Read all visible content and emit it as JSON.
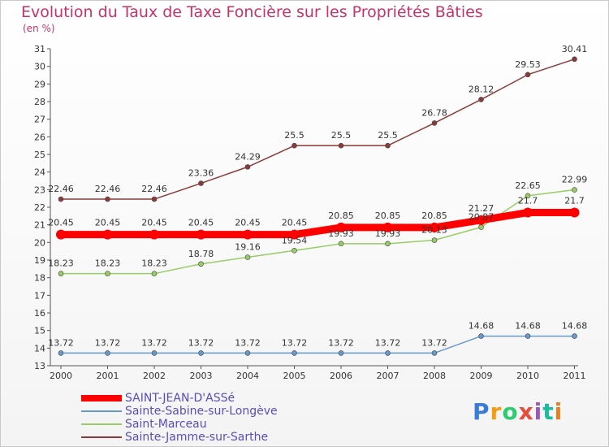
{
  "header": {
    "title": "Evolution du Taux de Taxe Foncière sur les Propriétés Bâties",
    "unit": "(en %)"
  },
  "logo": {
    "text": "Proxiti"
  },
  "chart_data": {
    "type": "line",
    "title": "Evolution du Taux de Taxe Foncière sur les Propriétés Bâties",
    "ylabel": "(en %)",
    "xlabel": "",
    "ylim": [
      13,
      31
    ],
    "yticks": [
      "13",
      "14",
      "15",
      "16",
      "17",
      "18",
      "19",
      "20",
      "21",
      "22",
      "23",
      "24",
      "25",
      "26",
      "27",
      "28",
      "29",
      "30",
      "31"
    ],
    "categories": [
      "2000",
      "2001",
      "2002",
      "2003",
      "2004",
      "2005",
      "2006",
      "2007",
      "2008",
      "2009",
      "2010",
      "2011"
    ],
    "grid": false,
    "legend": "bottom-left",
    "series": [
      {
        "name": "SAINT-JEAN-D'ASSé",
        "color": "#ff0000",
        "values": [
          20.45,
          20.45,
          20.45,
          20.45,
          20.45,
          20.45,
          20.85,
          20.85,
          20.85,
          21.27,
          21.7,
          21.7
        ],
        "labels": [
          "20.45",
          "20.45",
          "20.45",
          "20.45",
          "20.45",
          "20.45",
          "20.85",
          "20.85",
          "20.85",
          "21.27",
          "21.7",
          "21.7"
        ]
      },
      {
        "name": "Sainte-Sabine-sur-Longève",
        "color": "#6699cc",
        "values": [
          13.72,
          13.72,
          13.72,
          13.72,
          13.72,
          13.72,
          13.72,
          13.72,
          13.72,
          14.68,
          14.68,
          14.68
        ],
        "labels": [
          "13.72",
          "13.72",
          "13.72",
          "13.72",
          "13.72",
          "13.72",
          "13.72",
          "13.72",
          "13.72",
          "14.68",
          "14.68",
          "14.68"
        ]
      },
      {
        "name": "Saint-Marceau",
        "color": "#99cc66",
        "values": [
          18.23,
          18.23,
          18.23,
          18.78,
          19.16,
          19.54,
          19.93,
          19.93,
          20.13,
          20.87,
          22.65,
          22.99
        ],
        "labels": [
          "18.23",
          "18.23",
          "18.23",
          "18.78",
          "19.16",
          "19.54",
          "19.93",
          "19.93",
          "20.13",
          "20.87",
          "22.65",
          "22.99"
        ]
      },
      {
        "name": "Sainte-Jamme-sur-Sarthe",
        "color": "#8b3a3a",
        "values": [
          22.46,
          22.46,
          22.46,
          23.36,
          24.29,
          25.5,
          25.5,
          25.5,
          26.78,
          28.12,
          29.53,
          30.41
        ],
        "labels": [
          "22.46",
          "22.46",
          "22.46",
          "23.36",
          "24.29",
          "25.5",
          "25.5",
          "25.5",
          "26.78",
          "28.12",
          "29.53",
          "30.41"
        ]
      }
    ]
  }
}
